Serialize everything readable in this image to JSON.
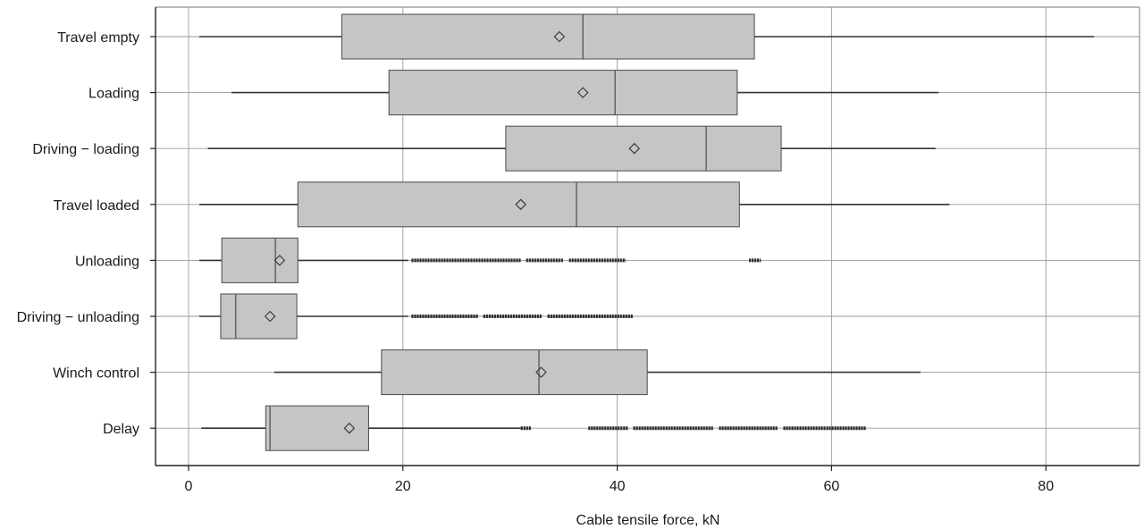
{
  "chart_data": {
    "type": "boxplot",
    "orientation": "horizontal",
    "title": "",
    "xlabel": "Cable tensile force, kN",
    "ylabel": "",
    "xlim": [
      -3,
      88
    ],
    "xticks": [
      0,
      20,
      40,
      60,
      80
    ],
    "grid": true,
    "legend": "none",
    "colors": {
      "box_fill": "#c4c5c7",
      "box_stroke": "#4a4a4a",
      "grid": "#9a9a9a",
      "axis": "#222222"
    },
    "categories": [
      "Travel empty",
      "Loading",
      "Driving − loading",
      "Travel loaded",
      "Unloading",
      "Driving − unloading",
      "Winch control",
      "Delay"
    ],
    "boxes": [
      {
        "whisker_low": 1.0,
        "q1": 14.3,
        "median": 36.8,
        "q3": 52.8,
        "whisker_high": 84.5,
        "mean": 34.6,
        "outliers": []
      },
      {
        "whisker_low": 4.0,
        "q1": 18.7,
        "median": 39.8,
        "q3": 51.2,
        "whisker_high": 70.0,
        "mean": 36.8,
        "outliers": []
      },
      {
        "whisker_low": 1.8,
        "q1": 29.6,
        "median": 48.3,
        "q3": 55.3,
        "whisker_high": 69.7,
        "mean": 41.6,
        "outliers": []
      },
      {
        "whisker_low": 1.0,
        "q1": 10.2,
        "median": 36.2,
        "q3": 51.4,
        "whisker_high": 71.0,
        "mean": 31.0,
        "outliers": []
      },
      {
        "whisker_low": 1.0,
        "q1": 3.1,
        "median": 8.1,
        "q3": 10.2,
        "whisker_high": 20.5,
        "mean": 8.5,
        "outliers": [
          [
            20.8,
            31.0
          ],
          [
            31.5,
            35.0
          ],
          [
            35.5,
            40.8
          ],
          [
            52.3,
            53.4
          ]
        ]
      },
      {
        "whisker_low": 1.0,
        "q1": 3.0,
        "median": 4.4,
        "q3": 10.1,
        "whisker_high": 20.5,
        "mean": 7.6,
        "outliers": [
          [
            20.8,
            27.0
          ],
          [
            27.5,
            33.0
          ],
          [
            33.5,
            41.5
          ]
        ]
      },
      {
        "whisker_low": 8.0,
        "q1": 18.0,
        "median": 32.7,
        "q3": 42.8,
        "whisker_high": 68.3,
        "mean": 32.9,
        "outliers": []
      },
      {
        "whisker_low": 1.2,
        "q1": 7.2,
        "median": 7.6,
        "q3": 16.8,
        "whisker_high": 31.0,
        "mean": 15.0,
        "outliers": [
          [
            31.0,
            32.0
          ],
          [
            37.3,
            41.0
          ],
          [
            41.5,
            49.0
          ],
          [
            49.5,
            55.0
          ],
          [
            55.5,
            63.2
          ]
        ]
      }
    ]
  }
}
